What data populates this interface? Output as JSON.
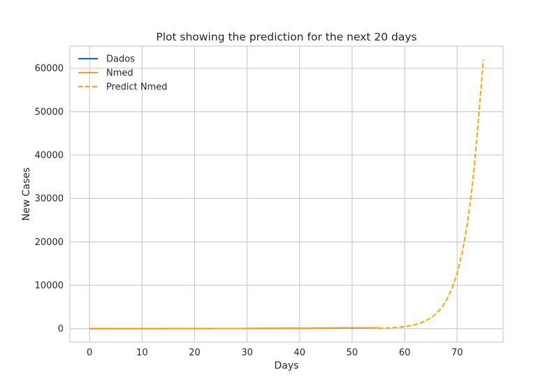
{
  "chart_data": {
    "type": "line",
    "title": "Plot showing the prediction for the next 20 days",
    "xlabel": "Days",
    "ylabel": "New Cases",
    "xlim": [
      -3.75,
      78.75
    ],
    "ylim": [
      -3100,
      65100
    ],
    "xticks": [
      0,
      10,
      20,
      30,
      40,
      50,
      60,
      70
    ],
    "yticks": [
      0,
      10000,
      20000,
      30000,
      40000,
      50000,
      60000
    ],
    "grid": true,
    "legend_position": "top-left",
    "series": [
      {
        "name": "Dados",
        "color": "#0072b2",
        "style": "solid",
        "x": [
          0,
          1,
          2,
          3,
          4,
          5,
          6,
          7,
          8,
          9,
          10,
          11,
          12,
          13,
          14,
          15,
          16,
          17,
          18,
          19,
          20,
          21,
          22,
          23,
          24,
          25,
          26,
          27,
          28,
          29,
          30,
          31,
          32,
          33,
          34,
          35,
          36,
          37,
          38,
          39,
          40,
          41,
          42,
          43,
          44,
          45,
          46,
          47,
          48,
          49,
          50,
          51,
          52,
          53,
          54,
          55
        ],
        "y": [
          0,
          2,
          1,
          3,
          2,
          4,
          3,
          5,
          2,
          4,
          3,
          6,
          5,
          8,
          6,
          10,
          12,
          9,
          14,
          18,
          16,
          22,
          25,
          20,
          28,
          35,
          30,
          40,
          45,
          38,
          55,
          60,
          52,
          70,
          80,
          65,
          90,
          95,
          85,
          110,
          100,
          120,
          105,
          130,
          140,
          115,
          150,
          125,
          160,
          170,
          145,
          180,
          165,
          190,
          175,
          195
        ]
      },
      {
        "name": "Nmed",
        "color": "#ff9f1c",
        "style": "solid",
        "x": [
          0,
          1,
          2,
          3,
          4,
          5,
          6,
          7,
          8,
          9,
          10,
          11,
          12,
          13,
          14,
          15,
          16,
          17,
          18,
          19,
          20,
          21,
          22,
          23,
          24,
          25,
          26,
          27,
          28,
          29,
          30,
          31,
          32,
          33,
          34,
          35,
          36,
          37,
          38,
          39,
          40,
          41,
          42,
          43,
          44,
          45,
          46,
          47,
          48,
          49,
          50,
          51,
          52,
          53,
          54,
          55
        ],
        "y": [
          0,
          1,
          2,
          2,
          3,
          3,
          4,
          4,
          4,
          5,
          5,
          6,
          7,
          8,
          9,
          10,
          11,
          13,
          14,
          16,
          18,
          20,
          22,
          25,
          27,
          30,
          33,
          36,
          40,
          44,
          48,
          52,
          57,
          62,
          67,
          72,
          78,
          84,
          90,
          96,
          102,
          108,
          114,
          121,
          128,
          135,
          142,
          149,
          156,
          163,
          170,
          177,
          184,
          191,
          198,
          205
        ]
      },
      {
        "name": "Predict Nmed",
        "color": "#ffa500",
        "style": "dashed",
        "x": [
          55,
          56,
          57,
          58,
          59,
          60,
          61,
          62,
          63,
          64,
          65,
          66,
          67,
          68,
          69,
          70,
          71,
          72,
          73,
          74,
          75
        ],
        "y": [
          93,
          129,
          179,
          249,
          345,
          479,
          665,
          923,
          1281,
          1778,
          2468,
          3426,
          4755,
          6600,
          9162,
          12716,
          17651,
          24500,
          34007,
          47202,
          62000
        ]
      }
    ]
  }
}
